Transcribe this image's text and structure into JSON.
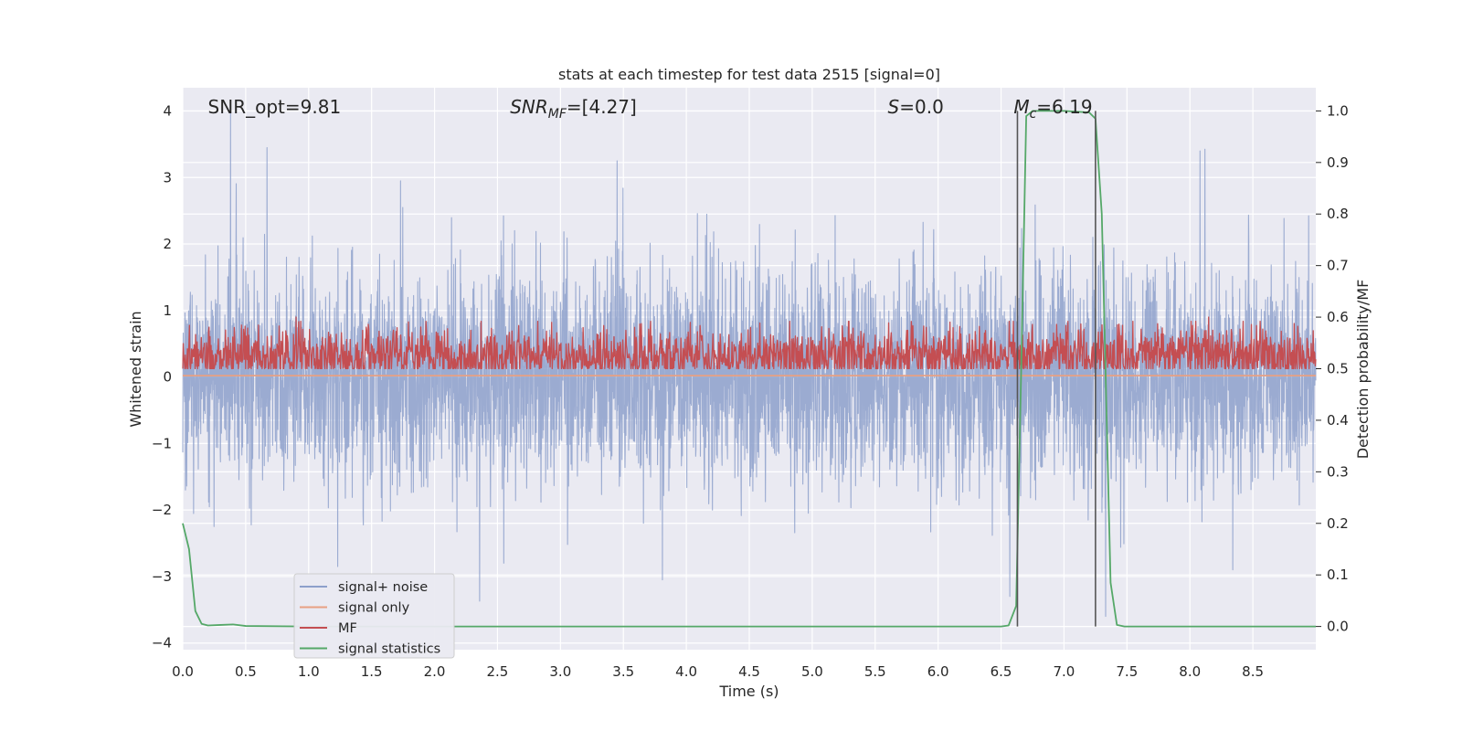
{
  "chart_data": {
    "type": "line",
    "title": "stats at each timestep for test data 2515 [signal=0]",
    "xlabel": "Time (s)",
    "ylabel": "Whitened strain",
    "ylabel_right": "Detection probability/MF",
    "xlim": [
      0,
      9.0
    ],
    "ylim": [
      -4.1,
      4.35
    ],
    "ylim_right": [
      -0.045,
      1.045
    ],
    "x_ticks": [
      0.0,
      0.5,
      1.0,
      1.5,
      2.0,
      2.5,
      3.0,
      3.5,
      4.0,
      4.5,
      5.0,
      5.5,
      6.0,
      6.5,
      7.0,
      7.5,
      8.0,
      8.5
    ],
    "x_tick_labels": [
      "0.0",
      "0.5",
      "1.0",
      "1.5",
      "2.0",
      "2.5",
      "3.0",
      "3.5",
      "4.0",
      "4.5",
      "5.0",
      "5.5",
      "6.0",
      "6.5",
      "7.0",
      "7.5",
      "8.0",
      "8.5"
    ],
    "y_ticks": [
      4,
      3,
      2,
      1,
      0,
      -1,
      -2,
      -3,
      -4
    ],
    "y_tick_labels": [
      "4",
      "3",
      "2",
      "1",
      "0",
      "−1",
      "−2",
      "−3",
      "−4"
    ],
    "y_right_ticks": [
      1.0,
      0.9,
      0.8,
      0.7,
      0.6,
      0.5,
      0.4,
      0.3,
      0.2,
      0.1,
      0.0
    ],
    "y_right_tick_labels": [
      "1.0",
      "0.9",
      "0.8",
      "0.7",
      "0.6",
      "0.5",
      "0.4",
      "0.3",
      "0.2",
      "0.1",
      "0.0"
    ],
    "grid": true,
    "legend_position": "lower-left",
    "annotations": [
      {
        "id": "snr-opt",
        "text": "SNR_opt=9.81",
        "x": 0.2
      },
      {
        "id": "snr-mf",
        "text": "SNR_MF=[4.27]",
        "x": 2.6
      },
      {
        "id": "s-value",
        "text": "S=0.0",
        "x": 5.6
      },
      {
        "id": "mc-value",
        "text": "M_c=6.19",
        "x": 6.6
      }
    ],
    "vertical_lines": [
      6.63,
      7.25
    ],
    "series": [
      {
        "name": "signal+ noise",
        "axis": "left",
        "color": "#8da0cb",
        "kind": "noise",
        "n_points": 4600,
        "seed": 2515,
        "sigma": 0.8,
        "spikes": [
          {
            "x": 0.38,
            "y": 4.0
          },
          {
            "x": 0.67,
            "y": 3.45
          },
          {
            "x": 1.73,
            "y": 2.95
          },
          {
            "x": 3.45,
            "y": 3.25
          },
          {
            "x": 8.08,
            "y": 3.4
          },
          {
            "x": 3.81,
            "y": -3.05
          },
          {
            "x": 8.34,
            "y": -2.9
          },
          {
            "x": 1.23,
            "y": -2.85
          },
          {
            "x": 7.33,
            "y": -3.6
          },
          {
            "x": 6.57,
            "y": -3.3
          },
          {
            "x": 2.55,
            "y": -2.8
          }
        ]
      },
      {
        "name": "signal only",
        "axis": "left",
        "color": "#e8a083",
        "kind": "flat",
        "value": 0.02
      },
      {
        "name": "MF",
        "axis": "right",
        "color": "#c44e52",
        "kind": "mf",
        "base": 0.525,
        "amplitude": 0.04,
        "peaks": [
          {
            "x": 0.9,
            "y": 0.6
          },
          {
            "x": 2.93,
            "y": 0.59
          },
          {
            "x": 4.03,
            "y": 0.59
          },
          {
            "x": 7.3,
            "y": 0.585
          },
          {
            "x": 8.15,
            "y": 0.6
          }
        ]
      },
      {
        "name": "signal statistics",
        "axis": "right",
        "color": "#55a868",
        "kind": "points",
        "x": [
          0.0,
          0.05,
          0.1,
          0.15,
          0.2,
          0.3,
          0.4,
          0.5,
          1.0,
          2.0,
          3.0,
          4.0,
          5.0,
          6.0,
          6.5,
          6.56,
          6.62,
          6.66,
          6.7,
          6.75,
          7.0,
          7.2,
          7.25,
          7.3,
          7.37,
          7.42,
          7.48,
          7.55,
          8.0,
          9.0
        ],
        "y": [
          0.2,
          0.15,
          0.03,
          0.005,
          0.002,
          0.003,
          0.004,
          0.001,
          0.0,
          0.0,
          0.0,
          0.0,
          0.0,
          0.0,
          0.0,
          0.002,
          0.04,
          0.5,
          0.99,
          1.0,
          1.0,
          0.997,
          0.985,
          0.8,
          0.085,
          0.003,
          0.0,
          0.0,
          0.0,
          0.0
        ]
      }
    ]
  }
}
